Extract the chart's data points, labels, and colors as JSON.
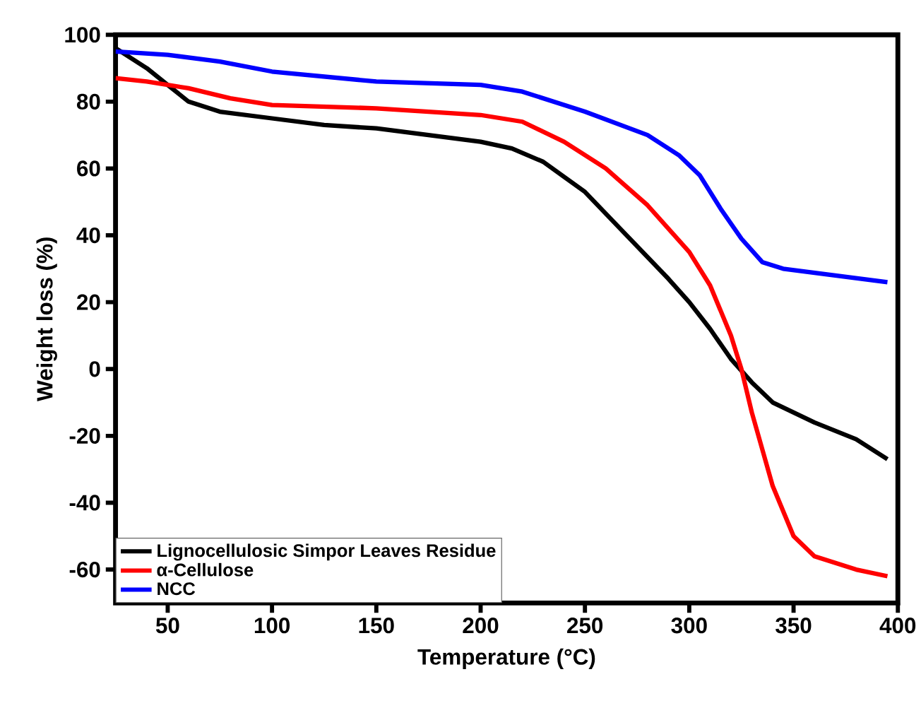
{
  "chart_data": {
    "type": "line",
    "xlabel": "Temperature (°C)",
    "ylabel": "Weight loss (%)",
    "xlim": [
      25,
      400
    ],
    "ylim": [
      -70,
      100
    ],
    "xticks": [
      50,
      100,
      150,
      200,
      250,
      300,
      350,
      400
    ],
    "yticks": [
      -60,
      -40,
      -20,
      0,
      20,
      40,
      60,
      80,
      100
    ],
    "legend": "bottom left",
    "grid": false,
    "marker": "none",
    "line_style": "solid",
    "series": [
      {
        "name": "Lignocellulosic Simpor Leaves Residue",
        "color": "#000000",
        "x": [
          25,
          40,
          50,
          60,
          75,
          100,
          125,
          150,
          175,
          200,
          215,
          230,
          250,
          270,
          290,
          300,
          310,
          320,
          330,
          340,
          360,
          380,
          395
        ],
        "values": [
          96,
          90,
          85,
          80,
          77,
          75,
          73,
          72,
          70,
          68,
          66,
          62,
          53,
          40,
          27,
          20,
          12,
          3,
          -4,
          -10,
          -16,
          -21,
          -27
        ]
      },
      {
        "name": "α-Cellulose",
        "color": "#ff0000",
        "x": [
          25,
          40,
          60,
          80,
          100,
          150,
          200,
          220,
          240,
          260,
          280,
          300,
          310,
          320,
          325,
          330,
          340,
          350,
          360,
          380,
          395
        ],
        "values": [
          87,
          86,
          84,
          81,
          79,
          78,
          76,
          74,
          68,
          60,
          49,
          35,
          25,
          10,
          0,
          -13,
          -35,
          -50,
          -56,
          -60,
          -62
        ]
      },
      {
        "name": "NCC",
        "color": "#0000ff",
        "x": [
          25,
          50,
          75,
          100,
          150,
          200,
          220,
          250,
          280,
          295,
          305,
          315,
          325,
          335,
          345,
          370,
          395
        ],
        "values": [
          95,
          94,
          92,
          89,
          86,
          85,
          83,
          77,
          70,
          64,
          58,
          48,
          39,
          32,
          30,
          28,
          26
        ]
      }
    ]
  }
}
